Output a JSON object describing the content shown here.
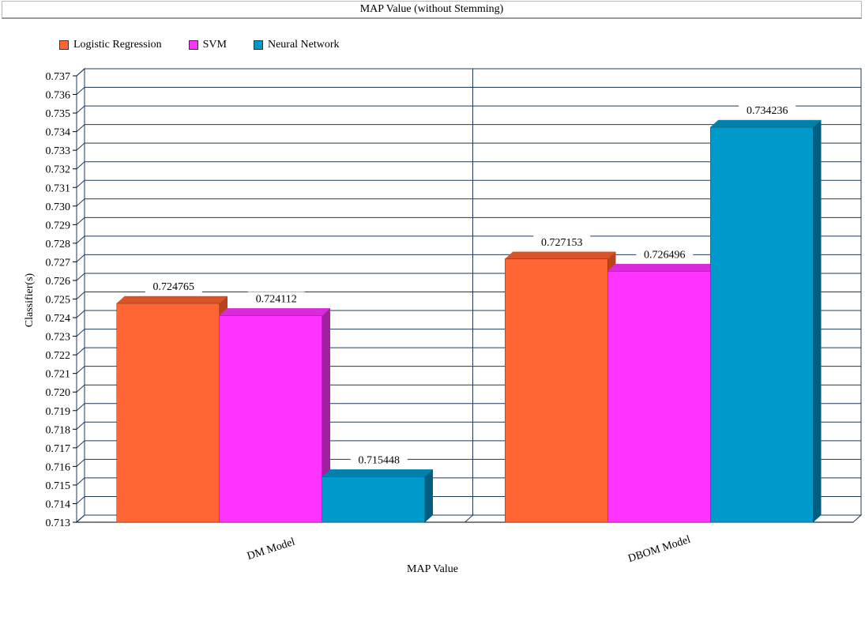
{
  "title": "MAP Value (without Stemming)",
  "chart_data": {
    "type": "bar",
    "title": "MAP Value (without Stemming)",
    "xlabel": "MAP Value",
    "ylabel": "Classifier(s)",
    "categories": [
      "DM Model",
      "DBOM Model"
    ],
    "series": [
      {
        "name": "Logistic Regression",
        "values": [
          0.724765,
          0.727153
        ],
        "labels": [
          "0.724765",
          "0.727153"
        ],
        "color": "#ff6633",
        "top_color": "#d95429",
        "side_color": "#b8441f"
      },
      {
        "name": "SVM",
        "values": [
          0.724112,
          0.726496
        ],
        "labels": [
          "0.724112",
          "0.726496"
        ],
        "color": "#ff33ff",
        "top_color": "#d92bd9",
        "side_color": "#a020a0"
      },
      {
        "name": "Neural Network",
        "values": [
          0.715448,
          0.734236
        ],
        "labels": [
          "0.715448",
          "0.734236"
        ],
        "color": "#0099cc",
        "top_color": "#0080aa",
        "side_color": "#005f80"
      }
    ],
    "ylim": [
      0.713,
      0.737
    ],
    "yticks": [
      "0.713",
      "0.714",
      "0.715",
      "0.716",
      "0.717",
      "0.718",
      "0.719",
      "0.720",
      "0.721",
      "0.722",
      "0.723",
      "0.724",
      "0.725",
      "0.726",
      "0.727",
      "0.728",
      "0.729",
      "0.730",
      "0.731",
      "0.732",
      "0.733",
      "0.734",
      "0.735",
      "0.736",
      "0.737"
    ],
    "grid": true,
    "legend_position": "top-left",
    "grid_color": "#1f3a5a"
  }
}
